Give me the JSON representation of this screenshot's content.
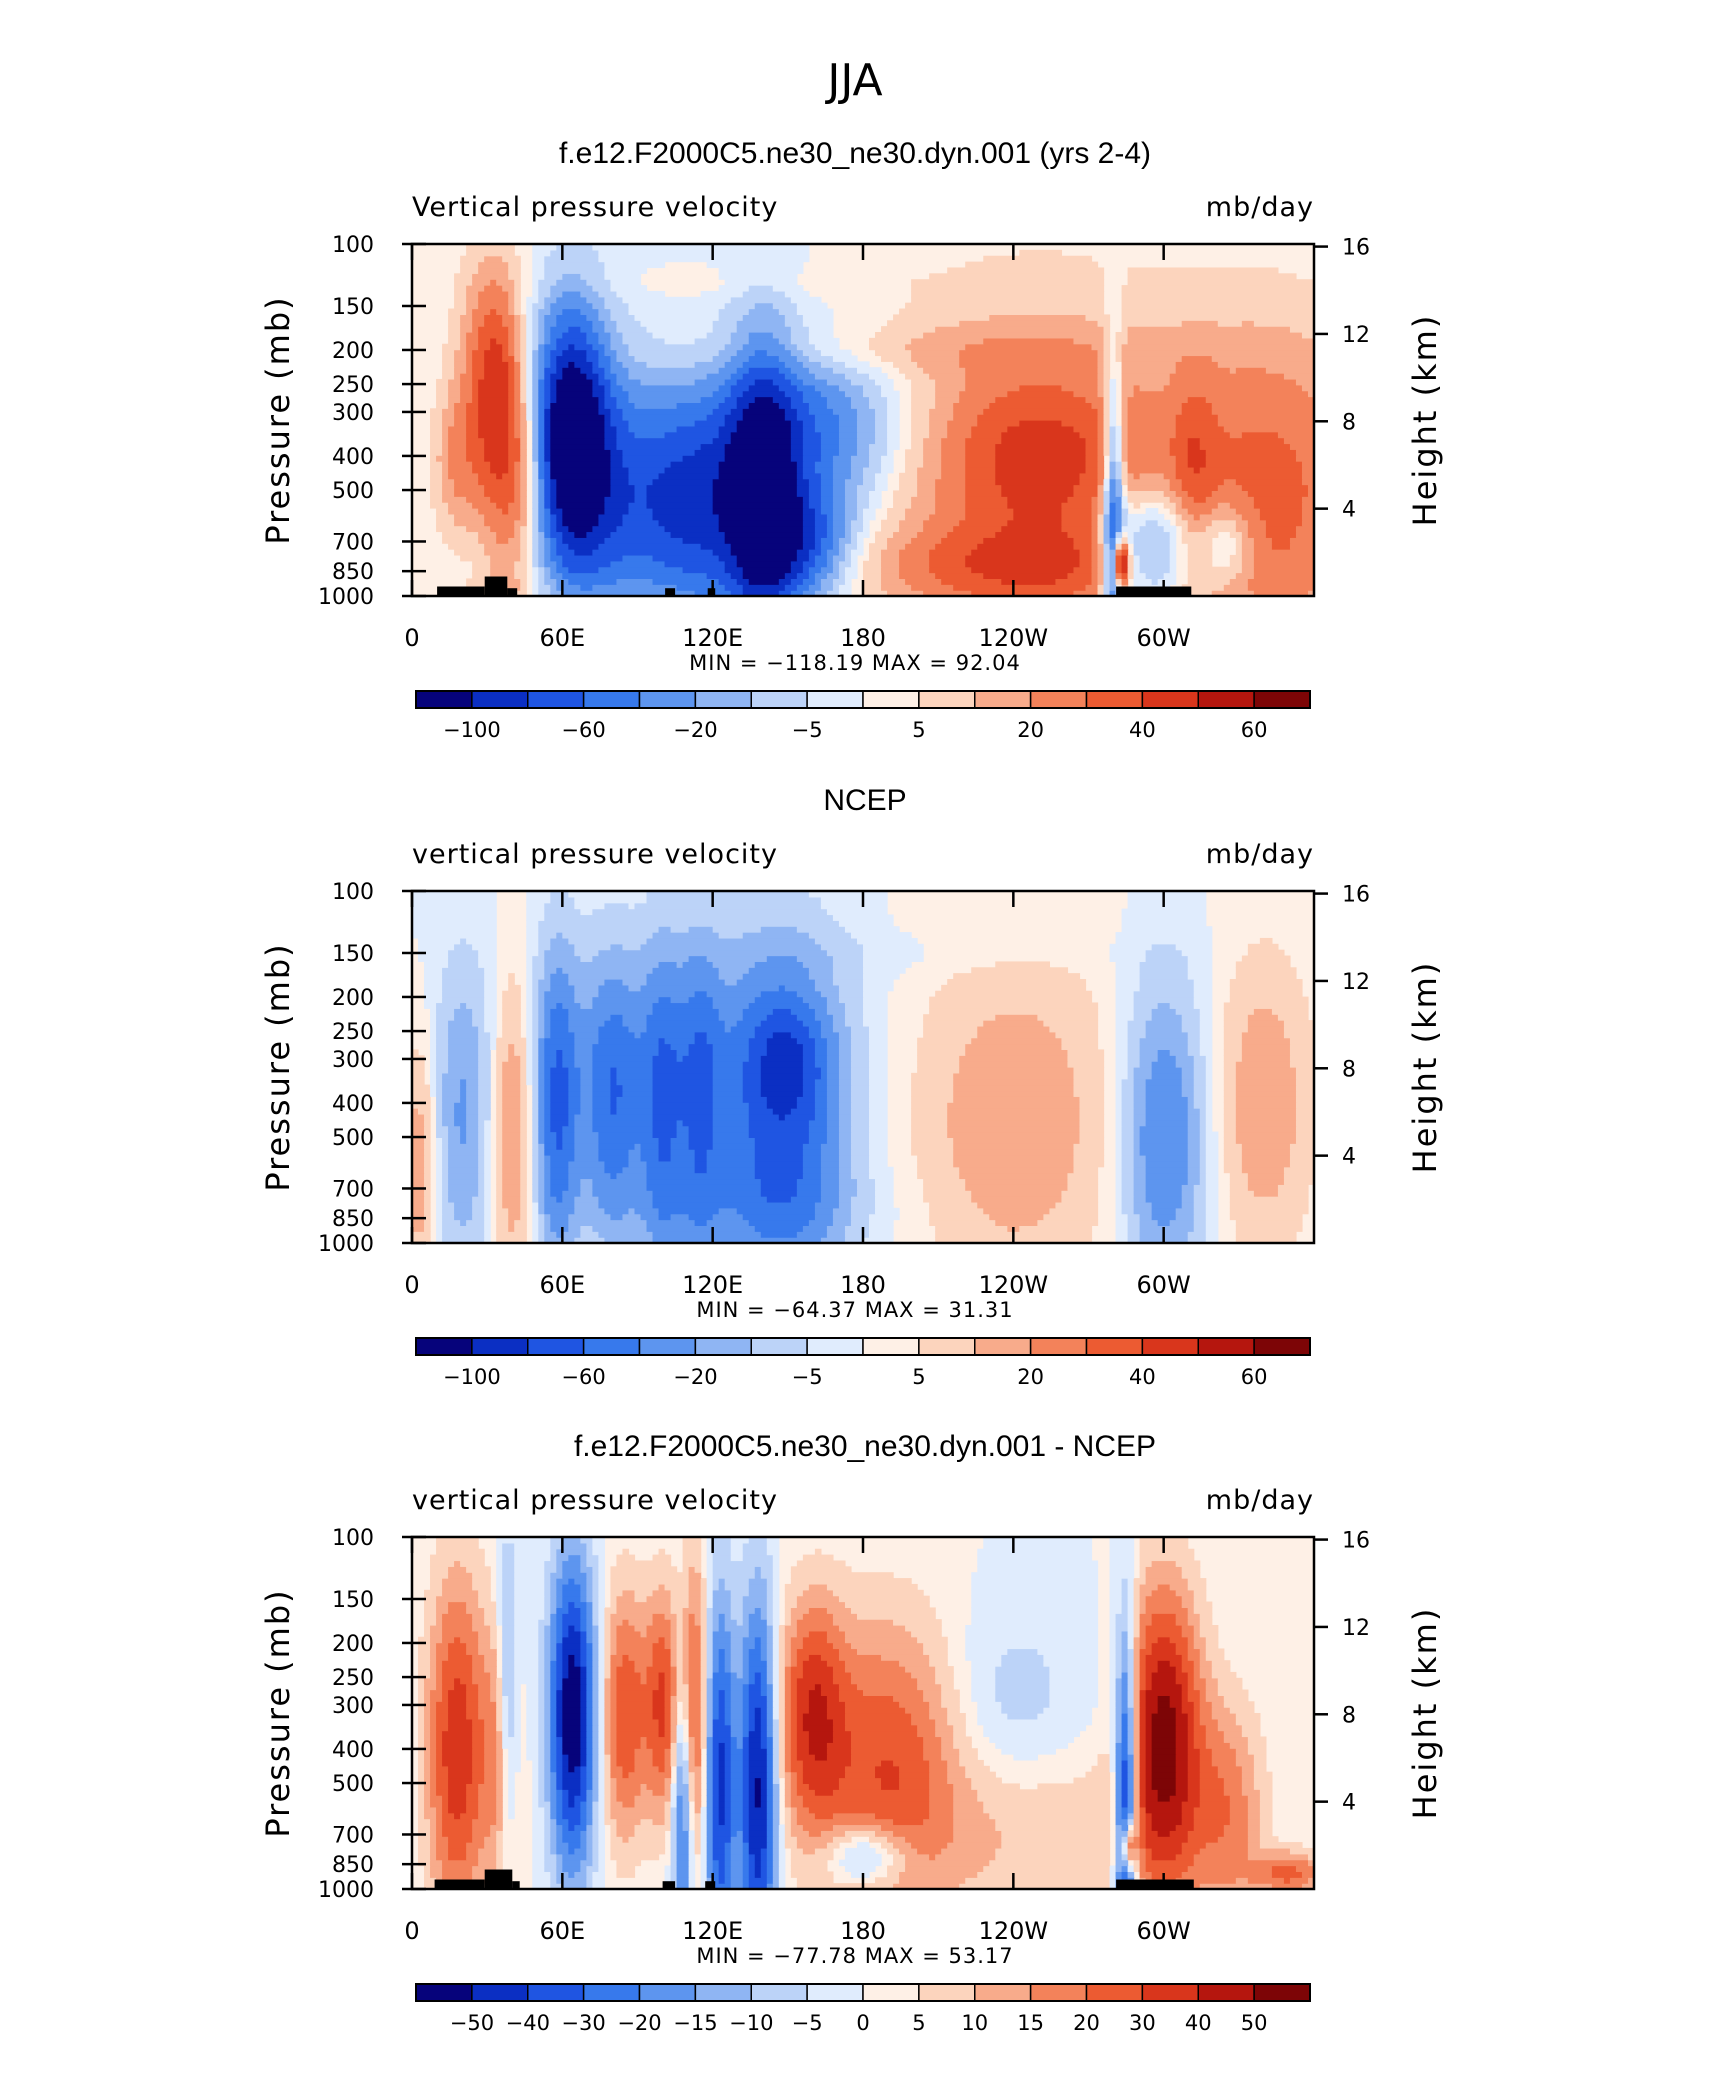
{
  "figure": {
    "title": "JJA"
  },
  "chart_data": [
    {
      "type": "heatmap",
      "title": "f.e12.F2000C5.ne30_ne30.dyn.001 (yrs 2-4)",
      "left_label": "Vertical pressure velocity",
      "right_label": "mb/day",
      "ylabel": "Pressure (mb)",
      "y2label": "Height (km)",
      "x_ticks": [
        "0",
        "60E",
        "120E",
        "180",
        "120W",
        "60W"
      ],
      "x_tick_lon": [
        0,
        60,
        120,
        180,
        240,
        300
      ],
      "xlim": [
        0,
        360
      ],
      "y_ticks": [
        "100",
        "150",
        "200",
        "250",
        "300",
        "400",
        "500",
        "700",
        "850",
        "1000"
      ],
      "y_tick_p": [
        100,
        150,
        200,
        250,
        300,
        400,
        500,
        700,
        850,
        1000
      ],
      "ylim": [
        1000,
        100
      ],
      "y2_ticks": [
        "16",
        "12",
        "8",
        "4"
      ],
      "y2_tick_km": [
        16,
        12,
        8,
        4
      ],
      "stats": "MIN = −118.19   MAX =   92.04",
      "min": -118.19,
      "max": 92.04,
      "colorbar_labels": [
        "−100",
        "−60",
        "−20",
        "−5",
        "5",
        "20",
        "40",
        "60"
      ],
      "colorbar_label_pos": [
        1,
        3,
        5,
        7,
        9,
        11,
        13,
        15
      ],
      "topography": [
        [
          10,
          29,
          940
        ],
        [
          29,
          38,
          880
        ],
        [
          38,
          42,
          950
        ],
        [
          101,
          105,
          950
        ],
        [
          118,
          121,
          950
        ],
        [
          281,
          311,
          940
        ]
      ],
      "features": [
        [
          30,
          230,
          9,
          0.55,
          0.4
        ],
        [
          18,
          420,
          7,
          0.35,
          0.3
        ],
        [
          38,
          500,
          7,
          0.75,
          0.25
        ],
        [
          34,
          300,
          6,
          0.5,
          0.3
        ],
        [
          46,
          440,
          6,
          0.4,
          0.3
        ],
        [
          63,
          340,
          10,
          0.55,
          -1.15
        ],
        [
          74,
          500,
          15,
          0.6,
          -0.55
        ],
        [
          110,
          520,
          18,
          0.5,
          -0.6
        ],
        [
          140,
          500,
          10,
          0.7,
          -0.85
        ],
        [
          155,
          700,
          14,
          0.25,
          -0.6
        ],
        [
          162,
          330,
          24,
          0.35,
          -0.5
        ],
        [
          130,
          600,
          30,
          0.55,
          -0.35
        ],
        [
          250,
          500,
          50,
          0.9,
          0.4
        ],
        [
          250,
          400,
          24,
          0.35,
          0.35
        ],
        [
          245,
          820,
          45,
          0.18,
          0.35
        ],
        [
          280,
          590,
          3,
          0.7,
          -0.8
        ],
        [
          283,
          800,
          2,
          0.12,
          1.1
        ],
        [
          295,
          750,
          14,
          0.28,
          -0.7
        ],
        [
          345,
          500,
          30,
          0.75,
          0.45
        ],
        [
          312,
          420,
          6,
          0.4,
          0.25
        ],
        [
          325,
          720,
          8,
          0.2,
          -0.4
        ],
        [
          205,
          200,
          70,
          0.12,
          0.12
        ],
        [
          125,
          130,
          50,
          0.08,
          0.05
        ],
        [
          50,
          950,
          50,
          0.06,
          0.06
        ]
      ]
    },
    {
      "type": "heatmap",
      "title": "NCEP",
      "left_label": "vertical pressure velocity",
      "right_label": "mb/day",
      "ylabel": "Pressure (mb)",
      "y2label": "Height (km)",
      "x_ticks": [
        "0",
        "60E",
        "120E",
        "180",
        "120W",
        "60W"
      ],
      "x_tick_lon": [
        0,
        60,
        120,
        180,
        240,
        300
      ],
      "xlim": [
        0,
        360
      ],
      "y_ticks": [
        "100",
        "150",
        "200",
        "250",
        "300",
        "400",
        "500",
        "700",
        "850",
        "1000"
      ],
      "y_tick_p": [
        100,
        150,
        200,
        250,
        300,
        400,
        500,
        700,
        850,
        1000
      ],
      "ylim": [
        1000,
        100
      ],
      "y2_ticks": [
        "16",
        "12",
        "8",
        "4"
      ],
      "y2_tick_km": [
        16,
        12,
        8,
        4
      ],
      "stats": "MIN =  −64.37   MAX =   31.31",
      "min": -64.37,
      "max": 31.31,
      "colorbar_labels": [
        "−100",
        "−60",
        "−20",
        "−5",
        "5",
        "20",
        "40",
        "60"
      ],
      "colorbar_label_pos": [
        1,
        3,
        5,
        7,
        9,
        11,
        13,
        15
      ],
      "topography": [],
      "features": [
        [
          3,
          600,
          5,
          0.6,
          0.3
        ],
        [
          20,
          450,
          8,
          0.7,
          -0.3
        ],
        [
          40,
          450,
          6,
          0.7,
          0.4
        ],
        [
          58,
          420,
          6,
          0.7,
          -0.55
        ],
        [
          80,
          400,
          8,
          0.6,
          -0.45
        ],
        [
          100,
          420,
          6,
          0.7,
          -0.45
        ],
        [
          115,
          400,
          6,
          0.7,
          -0.4
        ],
        [
          148,
          440,
          18,
          0.75,
          -0.6
        ],
        [
          150,
          300,
          10,
          0.25,
          -0.3
        ],
        [
          100,
          300,
          45,
          0.6,
          -0.22
        ],
        [
          240,
          450,
          30,
          0.8,
          0.3
        ],
        [
          300,
          500,
          12,
          0.7,
          -0.5
        ],
        [
          340,
          400,
          14,
          0.7,
          0.3
        ],
        [
          130,
          800,
          40,
          0.25,
          -0.15
        ],
        [
          210,
          150,
          60,
          0.1,
          -0.05
        ]
      ]
    },
    {
      "type": "heatmap",
      "title": "f.e12.F2000C5.ne30_ne30.dyn.001 - NCEP",
      "left_label": "vertical pressure velocity",
      "right_label": "mb/day",
      "ylabel": "Pressure (mb)",
      "y2label": "Height (km)",
      "x_ticks": [
        "0",
        "60E",
        "120E",
        "180",
        "120W",
        "60W"
      ],
      "x_tick_lon": [
        0,
        60,
        120,
        180,
        240,
        300
      ],
      "xlim": [
        0,
        360
      ],
      "y_ticks": [
        "100",
        "150",
        "200",
        "250",
        "300",
        "400",
        "500",
        "700",
        "850",
        "1000"
      ],
      "y_tick_p": [
        100,
        150,
        200,
        250,
        300,
        400,
        500,
        700,
        850,
        1000
      ],
      "ylim": [
        1000,
        100
      ],
      "y2_ticks": [
        "16",
        "12",
        "8",
        "4"
      ],
      "y2_tick_km": [
        16,
        12,
        8,
        4
      ],
      "stats": "MIN =  −77.78   MAX =   53.17",
      "min": -77.78,
      "max": 53.17,
      "colorbar_labels": [
        "−50",
        "−40",
        "−30",
        "−20",
        "−15",
        "−10",
        "−5",
        "0",
        "5",
        "10",
        "15",
        "20",
        "30",
        "40",
        "50"
      ],
      "colorbar_label_pos": [
        1,
        2,
        3,
        4,
        5,
        6,
        7,
        8,
        9,
        10,
        11,
        12,
        13,
        14,
        15
      ],
      "topography": [
        [
          9,
          29,
          940
        ],
        [
          29,
          40,
          880
        ],
        [
          40,
          43,
          950
        ],
        [
          100,
          105,
          950
        ],
        [
          117,
          121,
          950
        ],
        [
          281,
          312,
          940
        ]
      ],
      "features": [
        [
          18,
          400,
          8,
          0.75,
          0.75
        ],
        [
          35,
          420,
          5,
          0.6,
          0.35
        ],
        [
          38,
          300,
          3,
          0.7,
          -0.4
        ],
        [
          64,
          320,
          6,
          0.65,
          -1.2
        ],
        [
          85,
          320,
          6,
          0.55,
          0.6
        ],
        [
          100,
          300,
          5,
          0.5,
          0.65
        ],
        [
          112,
          320,
          4,
          0.7,
          0.6
        ],
        [
          108,
          550,
          3,
          0.7,
          -0.7
        ],
        [
          123,
          500,
          4,
          0.8,
          -0.85
        ],
        [
          138,
          520,
          5,
          0.8,
          -1.05
        ],
        [
          160,
          320,
          9,
          0.5,
          0.7
        ],
        [
          190,
          450,
          20,
          0.65,
          0.6
        ],
        [
          182,
          800,
          12,
          0.15,
          -0.5
        ],
        [
          250,
          700,
          40,
          0.4,
          0.2
        ],
        [
          237,
          300,
          22,
          0.45,
          -0.15
        ],
        [
          285,
          600,
          3,
          0.8,
          -1.1
        ],
        [
          286,
          760,
          2,
          0.12,
          0.9
        ],
        [
          300,
          380,
          10,
          0.65,
          1.1
        ],
        [
          325,
          600,
          10,
          0.5,
          0.4
        ],
        [
          350,
          900,
          10,
          0.1,
          0.5
        ]
      ]
    }
  ]
}
